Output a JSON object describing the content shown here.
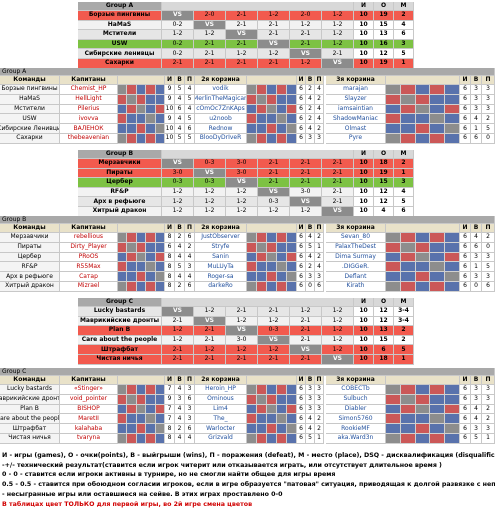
{
  "groups": [
    {
      "summary": {
        "title": "Group A",
        "headers": [
          "И",
          "О",
          "М"
        ],
        "rows": [
          {
            "team": "Борзые пингвины",
            "results": [
              "VS",
              "2-0",
              "2-1",
              "1-2",
              "2-0",
              "1-2"
            ],
            "games": 10,
            "points": 19,
            "place": 2,
            "highlight": "#f25a4e"
          },
          {
            "team": "НаМаS",
            "results": [
              "0-2",
              "VS",
              "2-1",
              "2-1",
              "1-2",
              "1-2"
            ],
            "games": 10,
            "points": 15,
            "place": 4
          },
          {
            "team": "Мстители",
            "results": [
              "1-2",
              "1-2",
              "VS",
              "2-1",
              "2-1",
              "1-2"
            ],
            "games": 10,
            "points": 13,
            "place": 6
          },
          {
            "team": "USW",
            "results": [
              "0-2",
              "2-1",
              "2-1",
              "VS",
              "2-1",
              "1-2"
            ],
            "games": 10,
            "points": 16,
            "place": 3,
            "highlight": "#7dc243"
          },
          {
            "team": "Сибирские ленивцы",
            "results": [
              "0-2",
              "2-1",
              "1-2",
              "1-2",
              "VS",
              "2-1"
            ],
            "games": 10,
            "points": 12,
            "place": 5
          },
          {
            "team": "Сахарки",
            "results": [
              "2-1",
              "2-1",
              "2-1",
              "2-1",
              "1-2",
              "VS"
            ],
            "games": 10,
            "points": 19,
            "place": 1,
            "highlight": "#f25a4e"
          }
        ]
      },
      "detail": {
        "label": "Group A",
        "headers": [
          "Команды",
          "Капитаны",
          "И",
          "В",
          "П",
          "2я корзина",
          "И",
          "В",
          "П",
          "3я корзина",
          "И",
          "В",
          "П"
        ],
        "rows": [
          {
            "team": "Борзые пингвины",
            "captain": "Chemist_HP",
            "stats": [
              9,
              5,
              4
            ],
            "basket2": "vodik",
            "stats2": [
              6,
              2,
              4
            ],
            "basket3": "marajan",
            "stats3": [
              6,
              3,
              3
            ]
          },
          {
            "team": "НаМаЅ",
            "captain": "HellLight",
            "stats": [
              9,
              4,
              5
            ],
            "basket2": "MerlinTheMagican",
            "stats2": [
              6,
              4,
              2
            ],
            "basket3": "Slayzer",
            "stats3": [
              6,
              3,
              3
            ]
          },
          {
            "team": "Мстители",
            "captain": "Pilerius",
            "stats": [
              10,
              6,
              4
            ],
            "basket2": "cOmOc7ZnKAps",
            "stats2": [
              6,
              2,
              4
            ],
            "basket3": "iamsaintian",
            "stats3": [
              6,
              3,
              3
            ]
          },
          {
            "team": "USW",
            "captain": "ivovva",
            "stats": [
              9,
              4,
              5
            ],
            "basket2": "u2noob",
            "stats2": [
              6,
              2,
              4
            ],
            "basket3": "ShadowManiac",
            "stats3": [
              6,
              4,
              2
            ]
          },
          {
            "team": "Сибирские Ленивцы",
            "captain": "ВАЛЕНОК",
            "stats": [
              10,
              4,
              6
            ],
            "basket2": "Rednow",
            "stats2": [
              6,
              4,
              2
            ],
            "basket3": "Olmast",
            "stats3": [
              6,
              1,
              5
            ]
          },
          {
            "team": "Сахарки",
            "captain": "thebeavenian",
            "stats": [
              10,
              5,
              5
            ],
            "basket2": "BlooDyDrIveR",
            "stats2": [
              6,
              3,
              3
            ],
            "basket3": "Pyre",
            "stats3": [
              6,
              6,
              0
            ]
          }
        ]
      }
    },
    {
      "summary": {
        "title": "Group B",
        "headers": [
          "И",
          "О",
          "М"
        ],
        "rows": [
          {
            "team": "Мерзавчики",
            "results": [
              "VS",
              "0-3",
              "3-0",
              "2-1",
              "2-1",
              "2-1"
            ],
            "games": 10,
            "points": 18,
            "place": 2,
            "highlight": "#f25a4e"
          },
          {
            "team": "Пираты",
            "results": [
              "3-0",
              "VS",
              "3-0",
              "2-1",
              "2-1",
              "2-1"
            ],
            "games": 10,
            "points": 19,
            "place": 1,
            "highlight": "#f25a4e"
          },
          {
            "team": "Цербер",
            "results": [
              "0-3",
              "0-3",
              "VS",
              "2-1",
              "2-1",
              "2-1"
            ],
            "games": 10,
            "points": 15,
            "place": 3,
            "highlight": "#7dc243"
          },
          {
            "team": "RF&P",
            "results": [
              "1-2",
              "1-2",
              "1-2",
              "VS",
              "3-0",
              "2-1"
            ],
            "games": 10,
            "points": 12,
            "place": 4
          },
          {
            "team": "Арх в рефьюге",
            "results": [
              "1-2",
              "1-2",
              "1-2",
              "0-3",
              "VS",
              "2-1"
            ],
            "games": 10,
            "points": 12,
            "place": 5
          },
          {
            "team": "Хитрый дракон",
            "results": [
              "1-2",
              "1-2",
              "1-2",
              "1-2",
              "1-2",
              "VS"
            ],
            "games": 10,
            "points": 4,
            "place": 6
          }
        ]
      },
      "detail": {
        "label": "Group B",
        "headers": [
          "Команды",
          "Капитаны",
          "И",
          "В",
          "П",
          "2я корзина",
          "И",
          "В",
          "П",
          "3я корзина",
          "И",
          "В",
          "П"
        ],
        "rows": [
          {
            "team": "Мерзавчики",
            "captain": "rebellious",
            "stats": [
              8,
              2,
              6
            ],
            "basket2": "JustObserver",
            "stats2": [
              6,
              4,
              2
            ],
            "basket3": "Sevan_80",
            "stats3": [
              6,
              4,
              2
            ]
          },
          {
            "team": "Пираты",
            "captain": "Dirty_Player",
            "stats": [
              6,
              4,
              2
            ],
            "basket2": "Stryfe",
            "stats2": [
              6,
              5,
              1
            ],
            "basket3": "PalaxTheDest",
            "stats3": [
              6,
              6,
              0
            ]
          },
          {
            "team": "Цербер",
            "captain": "PRoOS",
            "stats": [
              8,
              4,
              4
            ],
            "basket2": "Sanin",
            "stats2": [
              6,
              4,
              2
            ],
            "basket3": "Dima Surmay",
            "stats3": [
              6,
              3,
              3
            ]
          },
          {
            "team": "RF&P",
            "captain": "R55Max",
            "stats": [
              8,
              5,
              3
            ],
            "basket2": "MuLUyTa",
            "stats2": [
              6,
              2,
              4
            ],
            "basket3": ".DIGGeR.",
            "stats3": [
              6,
              1,
              5
            ]
          },
          {
            "team": "Арх в рефьюге",
            "captain": "Сатар",
            "stats": [
              8,
              4,
              4
            ],
            "basket2": "Roger-sa",
            "stats2": [
              6,
              3,
              3
            ],
            "basket3": "Deflant",
            "stats3": [
              6,
              3,
              3
            ]
          },
          {
            "team": "Хитрый дракон",
            "captain": "Mizrael",
            "stats": [
              8,
              2,
              6
            ],
            "basket2": "darkeRo",
            "stats2": [
              6,
              0,
              6
            ],
            "basket3": "Kirath",
            "stats3": [
              6,
              0,
              6
            ]
          }
        ]
      }
    },
    {
      "summary": {
        "title": "Group C",
        "headers": [
          "И",
          "О",
          "М"
        ],
        "rows": [
          {
            "team": "Lucky bastards",
            "results": [
              "VS",
              "1-2",
              "2-1",
              "2-1",
              "1-2",
              "1-2"
            ],
            "games": 10,
            "points": 12,
            "place": "3-4"
          },
          {
            "team": "Маврикийские дронты",
            "results": [
              "2-1",
              "VS",
              "1-2",
              "1-2",
              "2-1",
              "1-2"
            ],
            "games": 10,
            "points": 12,
            "place": "3-4"
          },
          {
            "team": "Plan B",
            "results": [
              "1-2",
              "2-1",
              "VS",
              "0-3",
              "2-1",
              "1-2"
            ],
            "games": 10,
            "points": 13,
            "place": 2,
            "highlight": "#f25a4e"
          },
          {
            "team": "Care about the people",
            "results": [
              "1-2",
              "2-1",
              "3-0",
              "VS",
              "2-1",
              "1-2"
            ],
            "games": 10,
            "points": 15,
            "place": 2
          },
          {
            "team": "Штрафбат",
            "results": [
              "2-1",
              "1-2",
              "1-2",
              "1-2",
              "VS",
              "1-2"
            ],
            "games": 10,
            "points": 6,
            "place": 5,
            "highlight": "#f25a4e"
          },
          {
            "team": "Чистая ничья",
            "results": [
              "2-1",
              "2-1",
              "2-1",
              "2-1",
              "2-1",
              "VS"
            ],
            "games": 10,
            "points": 18,
            "place": 1,
            "highlight": "#f25a4e"
          }
        ]
      },
      "detail": {
        "label": "Group C",
        "headers": [
          "Команды",
          "Капитаны",
          "И",
          "В",
          "П",
          "2я корзина",
          "И",
          "В",
          "П",
          "3я корзина",
          "И",
          "В",
          "П"
        ],
        "rows": [
          {
            "team": "Lucky bastards",
            "captain": "«Stinger»",
            "stats": [
              7,
              4,
              3
            ],
            "basket2": "Heroin_HP",
            "stats2": [
              6,
              3,
              3
            ],
            "basket3": "COBECTb",
            "stats3": [
              6,
              3,
              3
            ]
          },
          {
            "team": "Маврикийские дронты",
            "captain": "void_pointer",
            "stats": [
              9,
              3,
              6
            ],
            "basket2": "Ominous",
            "stats2": [
              6,
              3,
              3
            ],
            "basket3": "Sulbuch",
            "stats3": [
              6,
              3,
              3
            ]
          },
          {
            "team": "Plan B",
            "captain": "BISHOP",
            "stats": [
              7,
              4,
              3
            ],
            "basket2": "Lim4",
            "stats2": [
              6,
              3,
              3
            ],
            "basket3": "Diabler",
            "stats3": [
              6,
              4,
              2
            ]
          },
          {
            "team": "Care about the people",
            "captain": "MaretII",
            "stats": [
              7,
              4,
              3
            ],
            "basket2": "The_",
            "stats2": [
              6,
              4,
              2
            ],
            "basket3": "Simon5760",
            "stats3": [
              6,
              4,
              2
            ]
          },
          {
            "team": "Штрафбат",
            "captain": "kalahaba",
            "stats": [
              8,
              2,
              6
            ],
            "basket2": "Warlocter",
            "stats2": [
              6,
              4,
              2
            ],
            "basket3": "RookieMF",
            "stats3": [
              6,
              3,
              3
            ]
          },
          {
            "team": "Чистая ничья",
            "captain": "tvaryna",
            "stats": [
              8,
              4,
              4
            ],
            "basket2": "Grizvald",
            "stats2": [
              6,
              5,
              1
            ],
            "basket3": "aka.Ward3n",
            "stats3": [
              6,
              5,
              1
            ]
          }
        ]
      }
    }
  ],
  "legend": [
    "И - игры (games),    О - очки(points),   В - выйгрыши (wins),    П - поражения (defeat),    М - место (place),    DSQ - дисквалификация (disqualification)",
    "-+/- технический результат(ставится если игрок читерит или отказывается играть, или отсутствует длительное время )",
    "0 - 0 - ставится если игроки активны в турнире, но не смогли найти общее для игры время",
    "0.5 - 0.5 - ставится при обоюдном согласии игроков, если в игре образуется \"патовая\" ситуация, приводящая к долгой развязке с непредсказуемым завершением",
    "- несыгранные игры или оставшиеся на сейве. В этих играх проставлено 0-0",
    "В таблицах цвет ТОЛЬКО для первой игры, во 2й игре смена цветов"
  ]
}
